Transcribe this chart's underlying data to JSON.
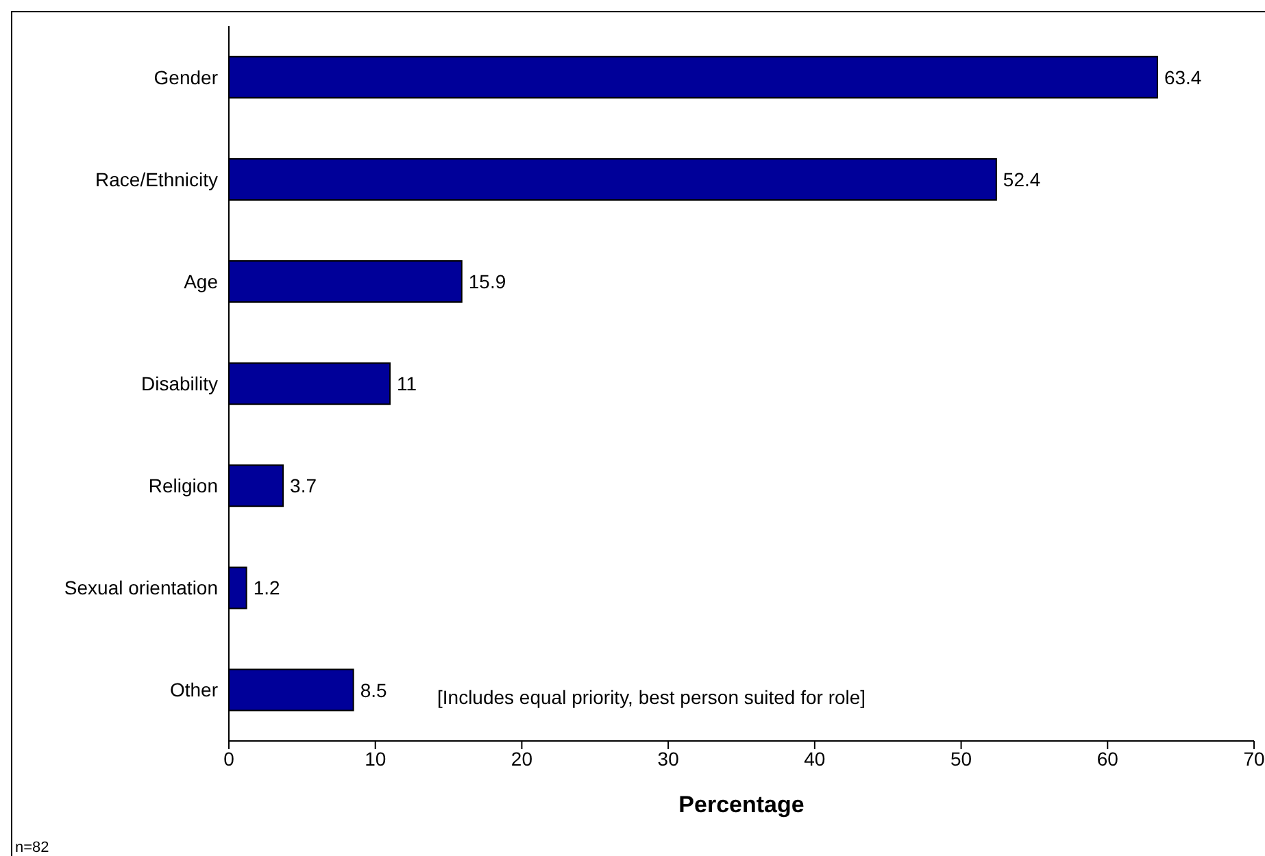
{
  "chart_data": {
    "type": "bar",
    "orientation": "horizontal",
    "xlabel": "Percentage",
    "categories": [
      "Gender",
      "Race/Ethnicity",
      "Age",
      "Disability",
      "Religion",
      "Sexual orientation",
      "Other"
    ],
    "values": [
      63.4,
      52.4,
      15.9,
      11,
      3.7,
      1.2,
      8.5
    ],
    "color": "#000099",
    "xlim": [
      0,
      70
    ],
    "xticks": [
      0,
      10,
      20,
      30,
      40,
      50,
      60,
      70
    ],
    "grid": false,
    "data_labels": true,
    "legend": false,
    "annotations": [
      "[Includes equal priority, best person suited for role]",
      "n=82"
    ]
  }
}
